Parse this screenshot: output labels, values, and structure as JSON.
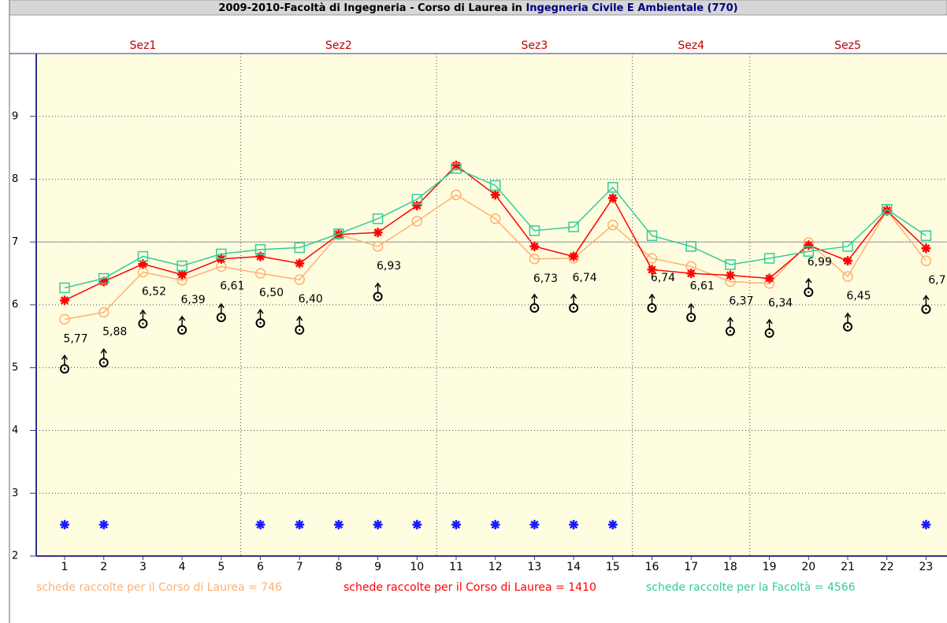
{
  "chart_data": {
    "type": "line",
    "title": "2009-2010-Facoltà di Ingegneria - Corso di Laurea in ",
    "course": "Ingegneria Civile E Ambientale (770)",
    "sections": [
      {
        "label": "Sez1",
        "span": 5
      },
      {
        "label": "Sez2",
        "span": 5
      },
      {
        "label": "Sez3",
        "span": 5
      },
      {
        "label": "Sez4",
        "span": 3
      },
      {
        "label": "Sez5",
        "span": 5
      }
    ],
    "categories": [
      "1",
      "2",
      "3",
      "4",
      "5",
      "6",
      "7",
      "8",
      "9",
      "10",
      "11",
      "12",
      "13",
      "14",
      "15",
      "16",
      "17",
      "18",
      "19",
      "20",
      "21",
      "22",
      "23"
    ],
    "ylim": [
      2,
      10
    ],
    "yticks": [
      2,
      3,
      4,
      5,
      6,
      7,
      8,
      9
    ],
    "grid": true,
    "reference_line": 7,
    "series": [
      {
        "name": "schede raccolte per il Corso di Laurea = 746",
        "color": "#ffb070",
        "marker": "circle",
        "line": true,
        "values": [
          5.77,
          5.88,
          6.52,
          6.39,
          6.61,
          6.5,
          6.4,
          7.12,
          6.93,
          7.33,
          7.75,
          7.37,
          6.73,
          6.74,
          7.27,
          6.74,
          6.61,
          6.37,
          6.34,
          6.99,
          6.45,
          7.5,
          6.7
        ],
        "value_labels": [
          "5,77",
          "5,88",
          "6,52",
          "6,39",
          "6,61",
          "6,50",
          "6,40",
          null,
          "6,93",
          null,
          null,
          null,
          "6,73",
          "6,74",
          null,
          "6,74",
          "6,61",
          "6,37",
          "6,34",
          "6,99",
          "6,45",
          null,
          "6,7"
        ]
      },
      {
        "name": "schede raccolte per il Corso di Laurea = 1410",
        "color": "#ff0000",
        "marker": "asterisk",
        "line": true,
        "values": [
          6.07,
          6.37,
          6.65,
          6.48,
          6.73,
          6.77,
          6.66,
          7.12,
          7.15,
          7.58,
          8.22,
          7.75,
          6.93,
          6.77,
          7.7,
          6.56,
          6.5,
          6.47,
          6.42,
          6.95,
          6.7,
          7.5,
          6.9
        ]
      },
      {
        "name": "schede raccolte per la Facoltà = 4566",
        "color": "#33cc99",
        "marker": "square",
        "line": true,
        "values": [
          6.27,
          6.42,
          6.77,
          6.62,
          6.81,
          6.88,
          6.91,
          7.13,
          7.37,
          7.68,
          8.17,
          7.9,
          7.18,
          7.24,
          7.87,
          7.1,
          6.93,
          6.64,
          6.74,
          6.85,
          6.93,
          7.52,
          7.1
        ]
      },
      {
        "color": "#000000",
        "marker": "male",
        "line": false,
        "values": [
          4.98,
          5.08,
          5.7,
          5.6,
          5.8,
          5.71,
          5.6,
          null,
          6.13,
          null,
          null,
          null,
          5.95,
          5.95,
          null,
          5.95,
          5.8,
          5.58,
          5.55,
          6.2,
          5.65,
          null,
          5.93
        ]
      },
      {
        "color": "#1a1aff",
        "marker": "asterisk",
        "line": false,
        "values": [
          2.5,
          2.5,
          null,
          null,
          null,
          2.5,
          2.5,
          2.5,
          2.5,
          2.5,
          2.5,
          2.5,
          2.5,
          2.5,
          2.5,
          null,
          null,
          null,
          null,
          null,
          null,
          null,
          2.5
        ]
      }
    ]
  }
}
